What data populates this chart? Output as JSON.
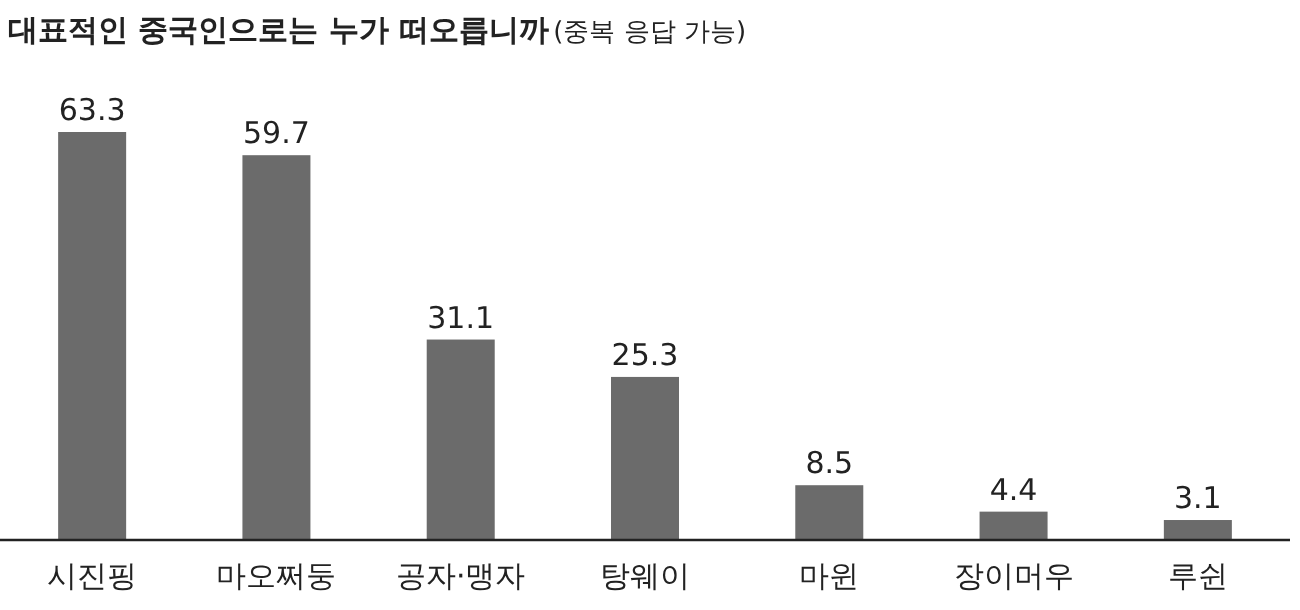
{
  "chart_data": {
    "type": "bar",
    "title": "대표적인 중국인으로는 누가 떠오릅니까",
    "subtitle": "(중복 응답 가능)",
    "categories": [
      "시진핑",
      "마오쩌둥",
      "공자·맹자",
      "탕웨이",
      "마윈",
      "장이머우",
      "루쉰"
    ],
    "values": [
      63.3,
      59.7,
      31.1,
      25.3,
      8.5,
      4.4,
      3.1
    ],
    "color": "#6b6b6b",
    "data_labels": true
  }
}
